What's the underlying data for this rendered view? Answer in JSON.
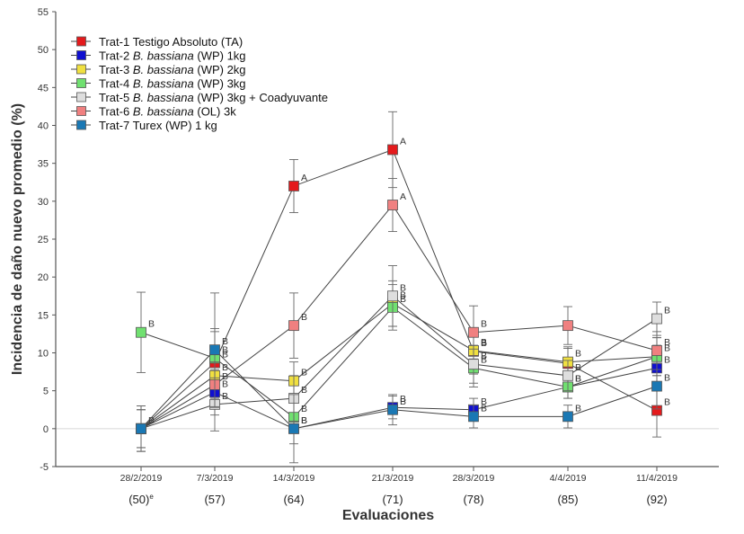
{
  "chart_data": {
    "type": "line",
    "ylabel": "Incidencia de daño nuevo promedio (%)",
    "xlabel": "Evaluaciones",
    "ylim": [
      -5,
      55
    ],
    "yticks": [
      -5,
      0,
      5,
      10,
      15,
      20,
      25,
      30,
      35,
      40,
      45,
      50,
      55
    ],
    "categories": [
      "28/2/2019",
      "7/3/2019",
      "14/3/2019",
      "21/3/2019",
      "28/3/2019",
      "4/4/2019",
      "11/4/2019"
    ],
    "category_days": [
      "(50)",
      "(57)",
      "(64)",
      "(71)",
      "(78)",
      "(85)",
      "(92)"
    ],
    "first_day_suffix": "e",
    "legend_position": "top-left",
    "series": [
      {
        "name": "Trat-1",
        "desc": "Testigo Absoluto (TA)",
        "desc_italic": "",
        "color": "#e41a1c",
        "values": [
          0,
          8.7,
          32,
          36.8,
          10.2,
          8.6,
          2.4
        ],
        "letters": [
          "",
          "B",
          "A",
          "A",
          "B",
          "",
          "B"
        ],
        "errors": [
          3,
          4.5,
          3.5,
          5,
          3,
          2,
          3.5
        ]
      },
      {
        "name": "Trat-2",
        "desc": "(WP) 1kg",
        "desc_italic": "B. bassiana",
        "color": "#1010d0",
        "values": [
          0,
          4.8,
          0,
          2.8,
          2.5,
          5.5,
          8.0
        ],
        "letters": [
          "B",
          "B",
          "B",
          "B",
          "B",
          "B",
          "B"
        ],
        "errors": [
          2.5,
          3,
          2,
          1.5,
          1.5,
          1.5,
          3
        ]
      },
      {
        "name": "Trat-3",
        "desc": "(WP) 2kg",
        "desc_italic": "B. bassiana",
        "color": "#f0e040",
        "values": [
          0,
          7.0,
          6.3,
          16.5,
          10.3,
          8.8,
          9.5
        ],
        "letters": [
          "",
          "B",
          "B",
          "B",
          "B",
          "B",
          ""
        ],
        "errors": [
          2.5,
          3,
          2.5,
          3,
          2.5,
          2,
          2.5
        ]
      },
      {
        "name": "Trat-4",
        "desc": "(WP) 3kg",
        "desc_italic": "B. bassiana",
        "color": "#70e070",
        "values": [
          12.7,
          9.3,
          1.5,
          16.0,
          8.0,
          5.5,
          9.5
        ],
        "letters": [
          "B",
          "B",
          "B",
          "B",
          "B",
          "B",
          "B"
        ],
        "errors": [
          5.3,
          3.5,
          2,
          3,
          2.5,
          1.5,
          2.5
        ]
      },
      {
        "name": "Trat-5",
        "desc": "(WP) 3kg + Coadyuvante",
        "desc_italic": "B. bassiana",
        "color": "#dedede",
        "values": [
          0,
          3.2,
          4.0,
          17.5,
          8.5,
          7.0,
          14.5
        ],
        "letters": [
          "",
          "B",
          "B",
          "B",
          "B",
          "B",
          "B"
        ],
        "errors": [
          3,
          3.5,
          3,
          4,
          2.5,
          2,
          2.2
        ]
      },
      {
        "name": "Trat-6",
        "desc": "(OL) 3k",
        "desc_italic": "B. bassiana",
        "color": "#f08080",
        "values": [
          0,
          5.8,
          13.6,
          29.5,
          12.7,
          13.6,
          10.3
        ],
        "letters": [
          "",
          "B",
          "B",
          "A",
          "B",
          "",
          "B"
        ],
        "errors": [
          3,
          3,
          4.3,
          3.5,
          3.5,
          2.5,
          2.5
        ]
      },
      {
        "name": "Trat-7",
        "desc": "Turex (WP) 1 kg",
        "desc_italic": "",
        "color": "#1a78b4",
        "values": [
          0,
          10.4,
          0,
          2.5,
          1.6,
          1.6,
          5.6
        ],
        "letters": [
          "",
          "B",
          "B",
          "B",
          "B",
          "B",
          "B"
        ],
        "errors": [
          2.5,
          7.5,
          4.5,
          2,
          1.5,
          1.5,
          3
        ]
      }
    ]
  }
}
